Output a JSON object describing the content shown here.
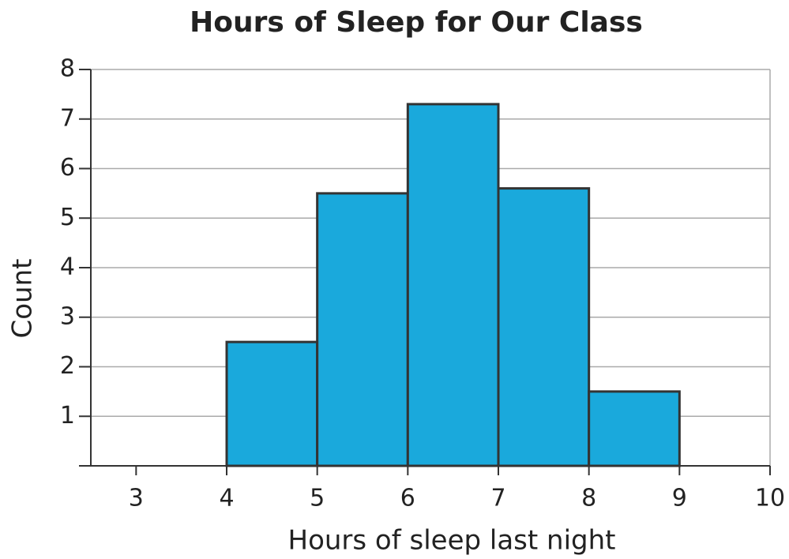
{
  "chart_data": {
    "type": "histogram",
    "title": "Hours of Sleep for Our Class",
    "x_label": "Hours of sleep last night",
    "y_label": "Count",
    "bins": [
      4,
      5,
      6,
      7,
      8,
      9
    ],
    "counts": [
      2.5,
      5.5,
      7.3,
      5.6,
      1.5
    ],
    "color": "#1aa9dc",
    "xlim": [
      2.5,
      10
    ],
    "xticks": [
      3,
      4,
      5,
      6,
      7,
      8,
      9,
      10
    ],
    "ylim": [
      0,
      8
    ],
    "yticks": [
      1,
      2,
      3,
      4,
      5,
      6,
      7,
      8
    ],
    "grid": true
  }
}
